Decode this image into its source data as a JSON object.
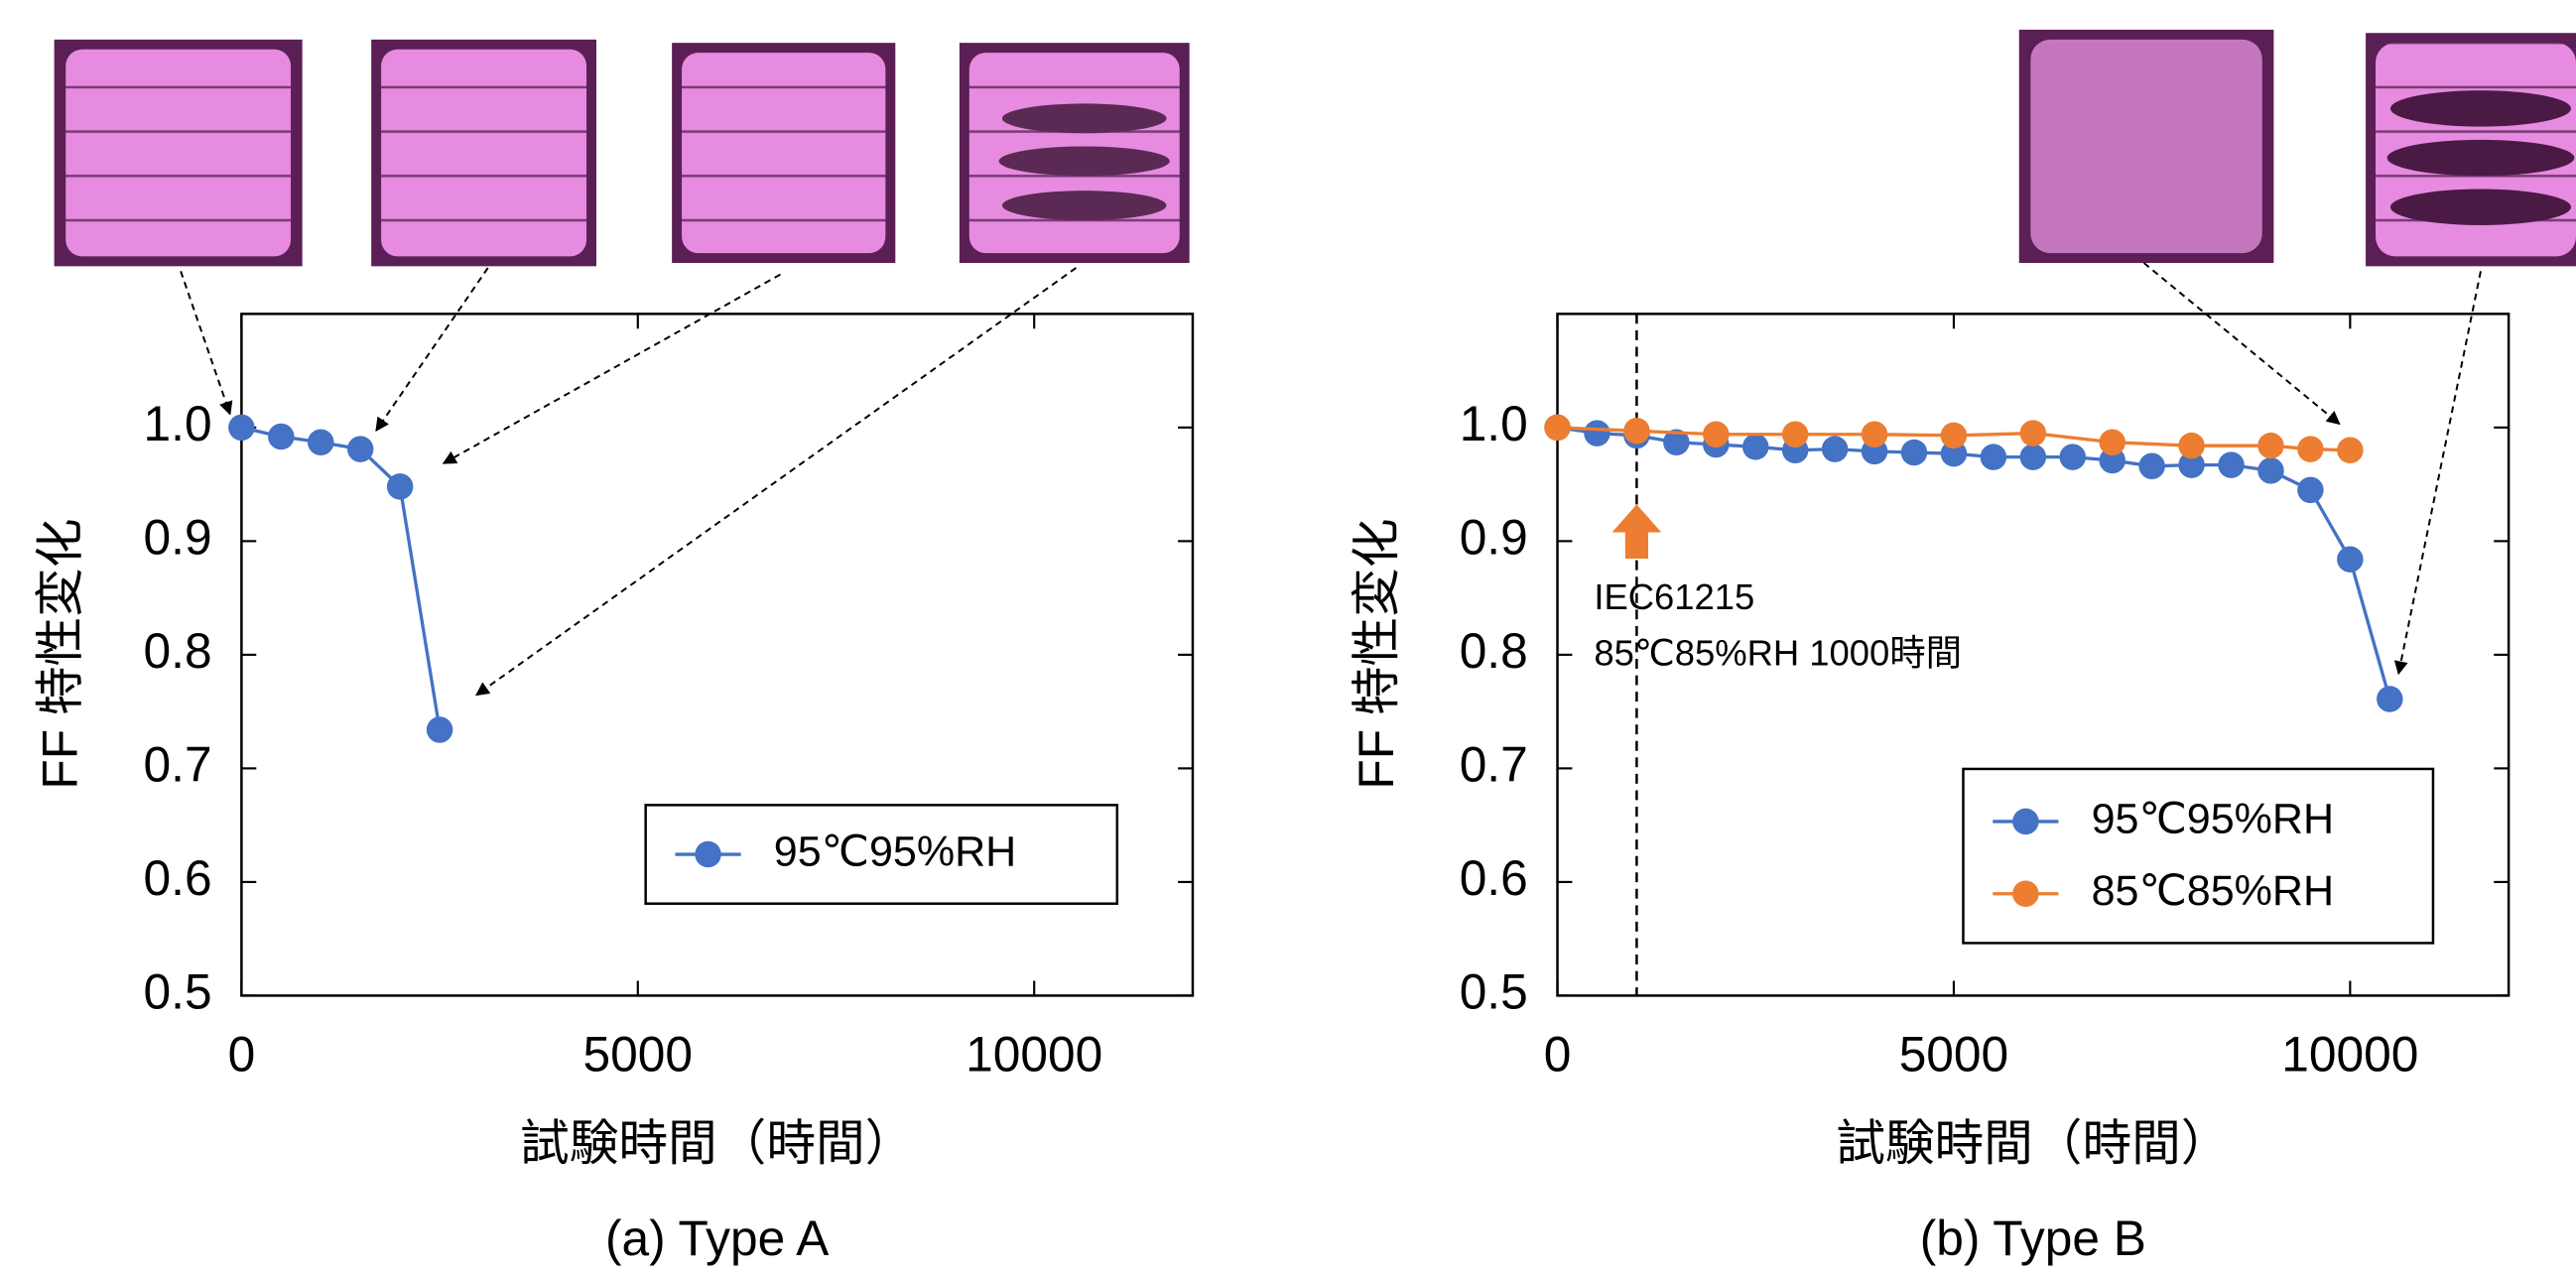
{
  "chart_data": [
    {
      "type": "line",
      "subtitle": "(a) Type A",
      "xlabel": "試験時間（時間）",
      "ylabel": "FF 特性変化",
      "xlim": [
        0,
        12000
      ],
      "xticks": [
        0,
        5000,
        10000
      ],
      "ylim": [
        0.5,
        1.1
      ],
      "yticks": [
        0.5,
        0.6,
        0.7,
        0.8,
        0.9,
        {
          "value": 1,
          "label": "1.0"
        }
      ],
      "legend": "lower right",
      "series": [
        {
          "name": "95℃95%RH",
          "color": "#4472c4",
          "x": [
            0,
            500,
            1000,
            1500,
            2000,
            2500
          ],
          "values": [
            1.0,
            0.992,
            0.987,
            0.981,
            0.948,
            0.734
          ]
        }
      ]
    },
    {
      "type": "line",
      "subtitle": "(b) Type B",
      "xlabel": "試験時間（時間）",
      "ylabel": "FF 特性変化",
      "xlim": [
        0,
        12000
      ],
      "xticks": [
        0,
        5000,
        10000
      ],
      "ylim": [
        0.5,
        1.1
      ],
      "yticks": [
        0.5,
        0.6,
        0.7,
        0.8,
        0.9,
        {
          "value": 1,
          "label": "1.0"
        }
      ],
      "legend": "lower right",
      "reference_x": 1000,
      "annotations": [
        "IEC61215",
        "85℃85%RH 1000時間"
      ],
      "series": [
        {
          "name": "95℃95%RH",
          "color": "#4472c4",
          "x": [
            0,
            500,
            1000,
            1500,
            2000,
            2500,
            3000,
            3500,
            4000,
            4500,
            5000,
            5500,
            6000,
            6500,
            7000,
            7500,
            8000,
            8500,
            9000,
            9500,
            10000,
            10500
          ],
          "values": [
            1.0,
            0.995,
            0.993,
            0.987,
            0.985,
            0.983,
            0.98,
            0.981,
            0.979,
            0.978,
            0.977,
            0.974,
            0.974,
            0.974,
            0.971,
            0.966,
            0.967,
            0.967,
            0.962,
            0.945,
            0.884,
            0.761
          ]
        },
        {
          "name": "85℃85%RH",
          "color": "#ed7d31",
          "x": [
            0,
            1000,
            2000,
            3000,
            4000,
            5000,
            6000,
            7000,
            8000,
            9000,
            9500,
            10000
          ],
          "values": [
            1.0,
            0.997,
            0.994,
            0.994,
            0.994,
            0.993,
            0.995,
            0.987,
            0.984,
            0.984,
            0.981,
            0.98
          ]
        }
      ]
    }
  ]
}
